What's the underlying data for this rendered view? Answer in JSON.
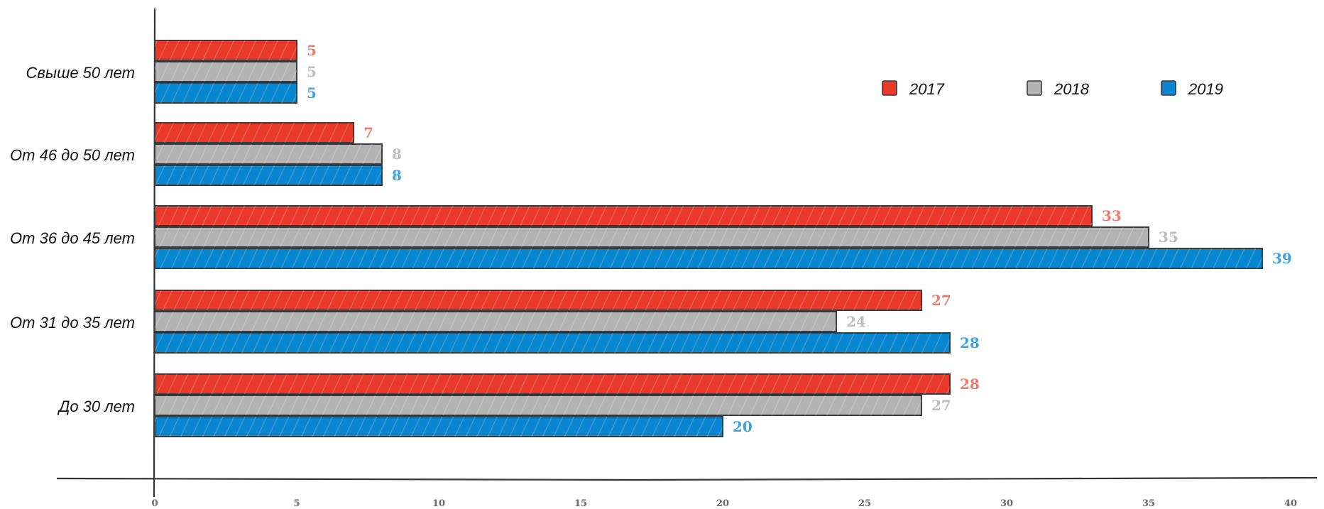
{
  "chart_data": {
    "type": "bar",
    "orientation": "horizontal",
    "categories": [
      "Свыше 50 лет",
      "От 46 до 50 лет",
      "От 36 до 45 лет",
      "От 31 до 35 лет",
      "До 30 лет"
    ],
    "series": [
      {
        "name": "2017",
        "color": "#e8392a",
        "label_color": "#f07a6e",
        "values": [
          5,
          7,
          33,
          27,
          28
        ]
      },
      {
        "name": "2018",
        "color": "#b3b3b3",
        "label_color": "#bdbdbd",
        "values": [
          5,
          8,
          35,
          24,
          27
        ]
      },
      {
        "name": "2019",
        "color": "#0a86d0",
        "label_color": "#3aa3df",
        "values": [
          5,
          8,
          39,
          28,
          20
        ]
      }
    ],
    "xlim": [
      0,
      40
    ],
    "xticks": [
      0,
      5,
      10,
      15,
      20,
      25,
      30,
      35,
      40
    ],
    "xlabel": "",
    "ylabel": "",
    "title": "",
    "legend_position": "top-right",
    "grid": false
  }
}
